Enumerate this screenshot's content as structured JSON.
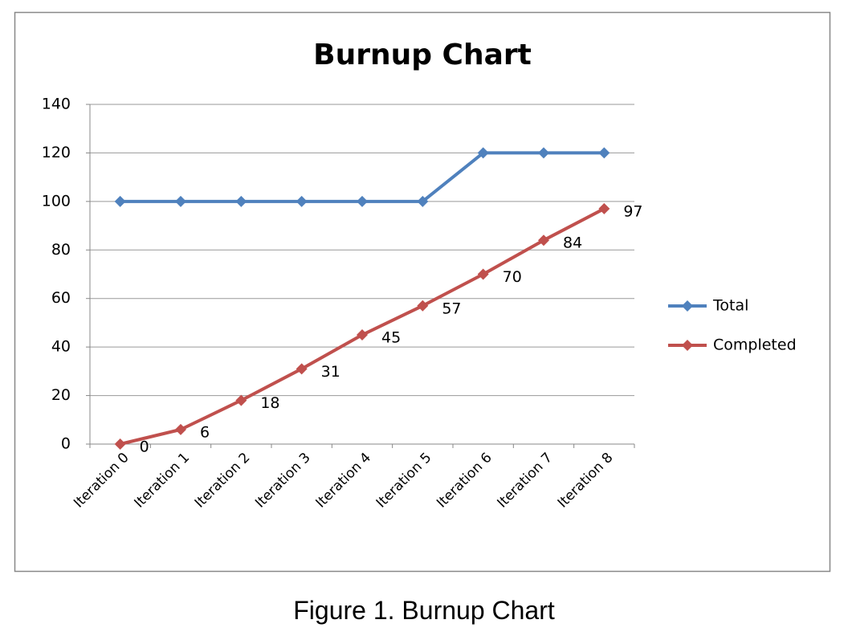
{
  "chart_data": {
    "type": "line",
    "title": "Burnup Chart",
    "categories": [
      "Iteration 0",
      "Iteration 1",
      "Iteration 2",
      "Iteration 3",
      "Iteration 4",
      "Iteration 5",
      "Iteration 6",
      "Iteration 7",
      "Iteration 8"
    ],
    "series": [
      {
        "name": "Total",
        "color": "#4f81bd",
        "values": [
          100,
          100,
          100,
          100,
          100,
          100,
          120,
          120,
          120
        ],
        "data_labels": false
      },
      {
        "name": "Completed",
        "color": "#c0504d",
        "values": [
          0,
          6,
          18,
          31,
          45,
          57,
          70,
          84,
          97
        ],
        "data_labels": true
      }
    ],
    "ylim": [
      0,
      140
    ],
    "yticks": [
      0,
      20,
      40,
      60,
      80,
      100,
      120,
      140
    ],
    "grid": true,
    "legend": "right"
  },
  "caption": "Figure 1. Burnup Chart"
}
